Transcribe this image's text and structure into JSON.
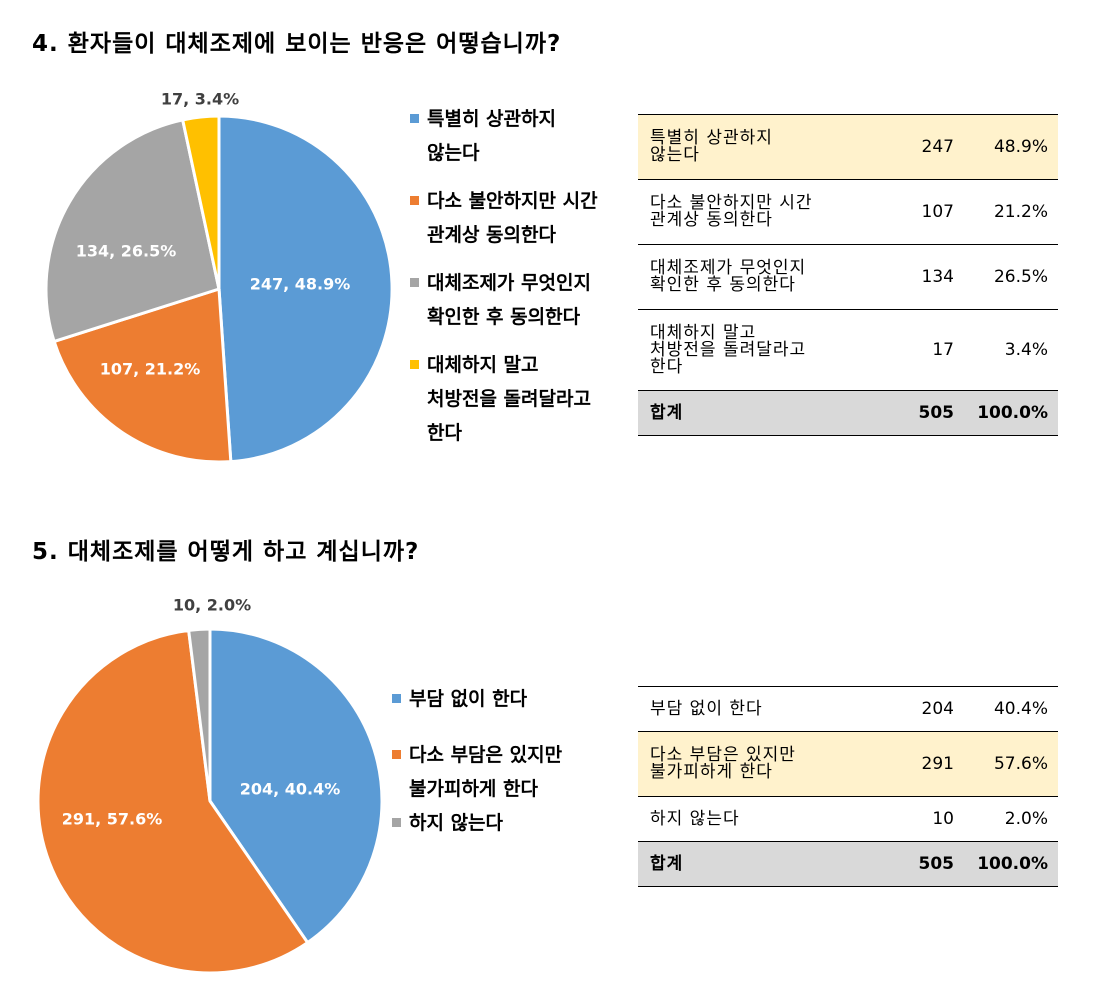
{
  "chart_data": [
    {
      "type": "pie",
      "title": "4. 환자들이 대체조제에 보이는 반응은 어떻습니까?",
      "categories": [
        "특별히 상관하지 않는다",
        "다소 불안하지만 시간 관계상 동의한다",
        "대체조제가 무엇인지 확인한 후 동의한다",
        "대체하지 말고 처방전을 돌려달라고 한다"
      ],
      "legend_labels": [
        "특별히 상관하지\n않는다",
        "다소 불안하지만 시간\n관계상 동의한다",
        "대체조제가 무엇인지\n확인한 후 동의한다",
        "대체하지 말고\n처방전을 돌려달라고\n한다"
      ],
      "values": [
        247,
        107,
        134,
        17
      ],
      "percents": [
        "48.9%",
        "21.2%",
        "26.5%",
        "3.4%"
      ],
      "data_labels": [
        "247, 48.9%",
        "107, 21.2%",
        "134, 26.5%",
        "17, 3.4%"
      ],
      "colors": [
        "#5b9bd5",
        "#ed7d31",
        "#a5a5a5",
        "#ffc000"
      ],
      "legend_position": "right",
      "table": {
        "rows": [
          {
            "label": "특별히 상관하지\n않는다",
            "count": "247",
            "percent": "48.9%",
            "highlight": true
          },
          {
            "label": "다소 불안하지만 시간\n관계상 동의한다",
            "count": "107",
            "percent": "21.2%",
            "highlight": false
          },
          {
            "label": "대체조제가 무엇인지\n확인한 후 동의한다",
            "count": "134",
            "percent": "26.5%",
            "highlight": false
          },
          {
            "label": "대체하지 말고\n처방전을 돌려달라고\n한다",
            "count": "17",
            "percent": "3.4%",
            "highlight": false
          }
        ],
        "total": {
          "label": "합계",
          "count": "505",
          "percent": "100.0%"
        }
      }
    },
    {
      "type": "pie",
      "title": "5. 대체조제를 어떻게 하고 계십니까?",
      "categories": [
        "부담 없이 한다",
        "다소 부담은 있지만 불가피하게 한다",
        "하지 않는다"
      ],
      "legend_labels": [
        "부담 없이 한다",
        "다소 부담은 있지만\n불가피하게 한다",
        "하지 않는다"
      ],
      "values": [
        204,
        291,
        10
      ],
      "percents": [
        "40.4%",
        "57.6%",
        "2.0%"
      ],
      "data_labels": [
        "204, 40.4%",
        "291, 57.6%",
        "10, 2.0%"
      ],
      "colors": [
        "#5b9bd5",
        "#ed7d31",
        "#a5a5a5"
      ],
      "legend_position": "right",
      "table": {
        "rows": [
          {
            "label": "부담 없이 한다",
            "count": "204",
            "percent": "40.4%",
            "highlight": false
          },
          {
            "label": "다소 부담은 있지만\n불가피하게 한다",
            "count": "291",
            "percent": "57.6%",
            "highlight": true
          },
          {
            "label": "하지 않는다",
            "count": "10",
            "percent": "2.0%",
            "highlight": false
          }
        ],
        "total": {
          "label": "합계",
          "count": "505",
          "percent": "100.0%"
        }
      }
    }
  ]
}
